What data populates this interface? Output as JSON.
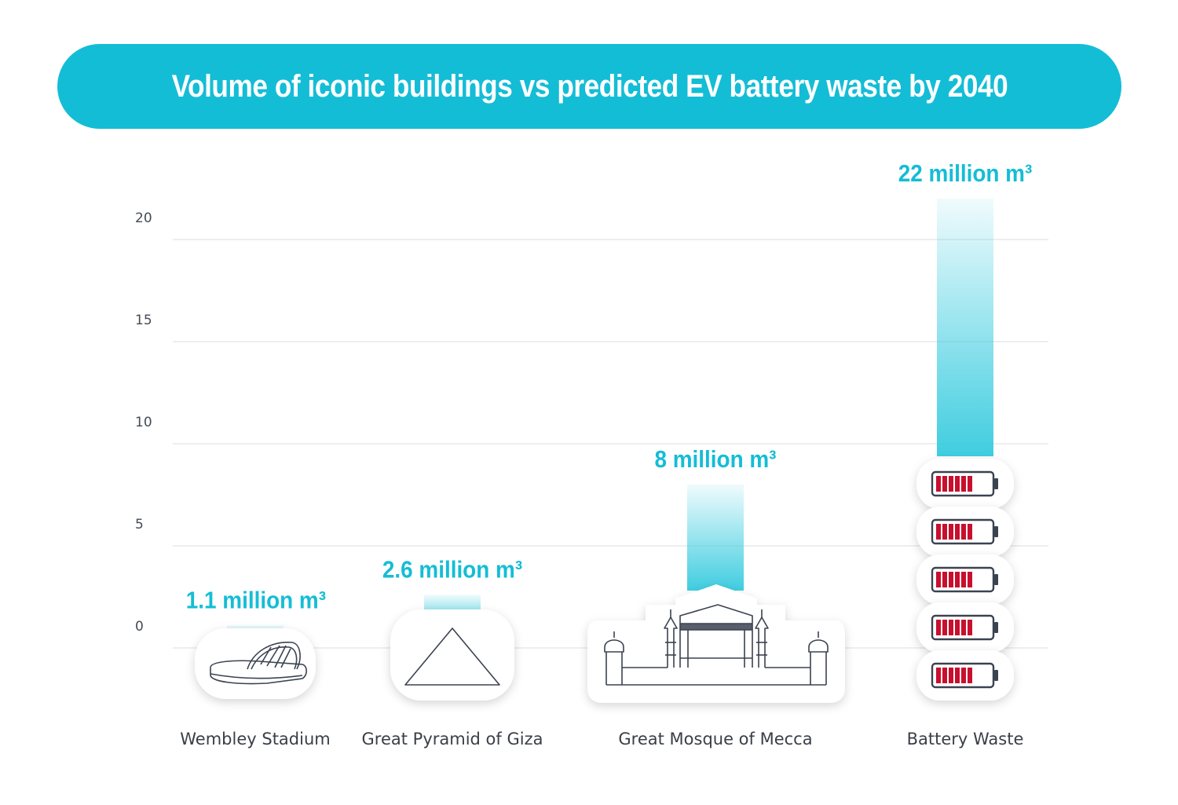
{
  "title": "Volume of iconic buildings vs predicted EV battery waste by 2040",
  "colors": {
    "accent": "#14bdd6",
    "battery_fill": "#c8102e",
    "outline": "#3b4250",
    "grid": "#d9dde2"
  },
  "chart_data": {
    "type": "bar",
    "title": "Volume of iconic buildings vs predicted EV battery waste by 2040",
    "categories": [
      "Wembley Stadium",
      "Great Pyramid of Giza",
      "Great Mosque of Mecca",
      "Battery Waste"
    ],
    "values": [
      1.1,
      2.6,
      8,
      22
    ],
    "value_labels": [
      "1.1 million m³",
      "2.6 million m³",
      "8 million m³",
      "22 million m³"
    ],
    "icons": [
      "stadium-icon",
      "pyramid-icon",
      "mosque-icon",
      "battery-stack-icon"
    ],
    "yticks": [
      "0",
      "5",
      "10",
      "15",
      "20"
    ],
    "ylim": [
      0,
      20
    ],
    "grid": true
  }
}
